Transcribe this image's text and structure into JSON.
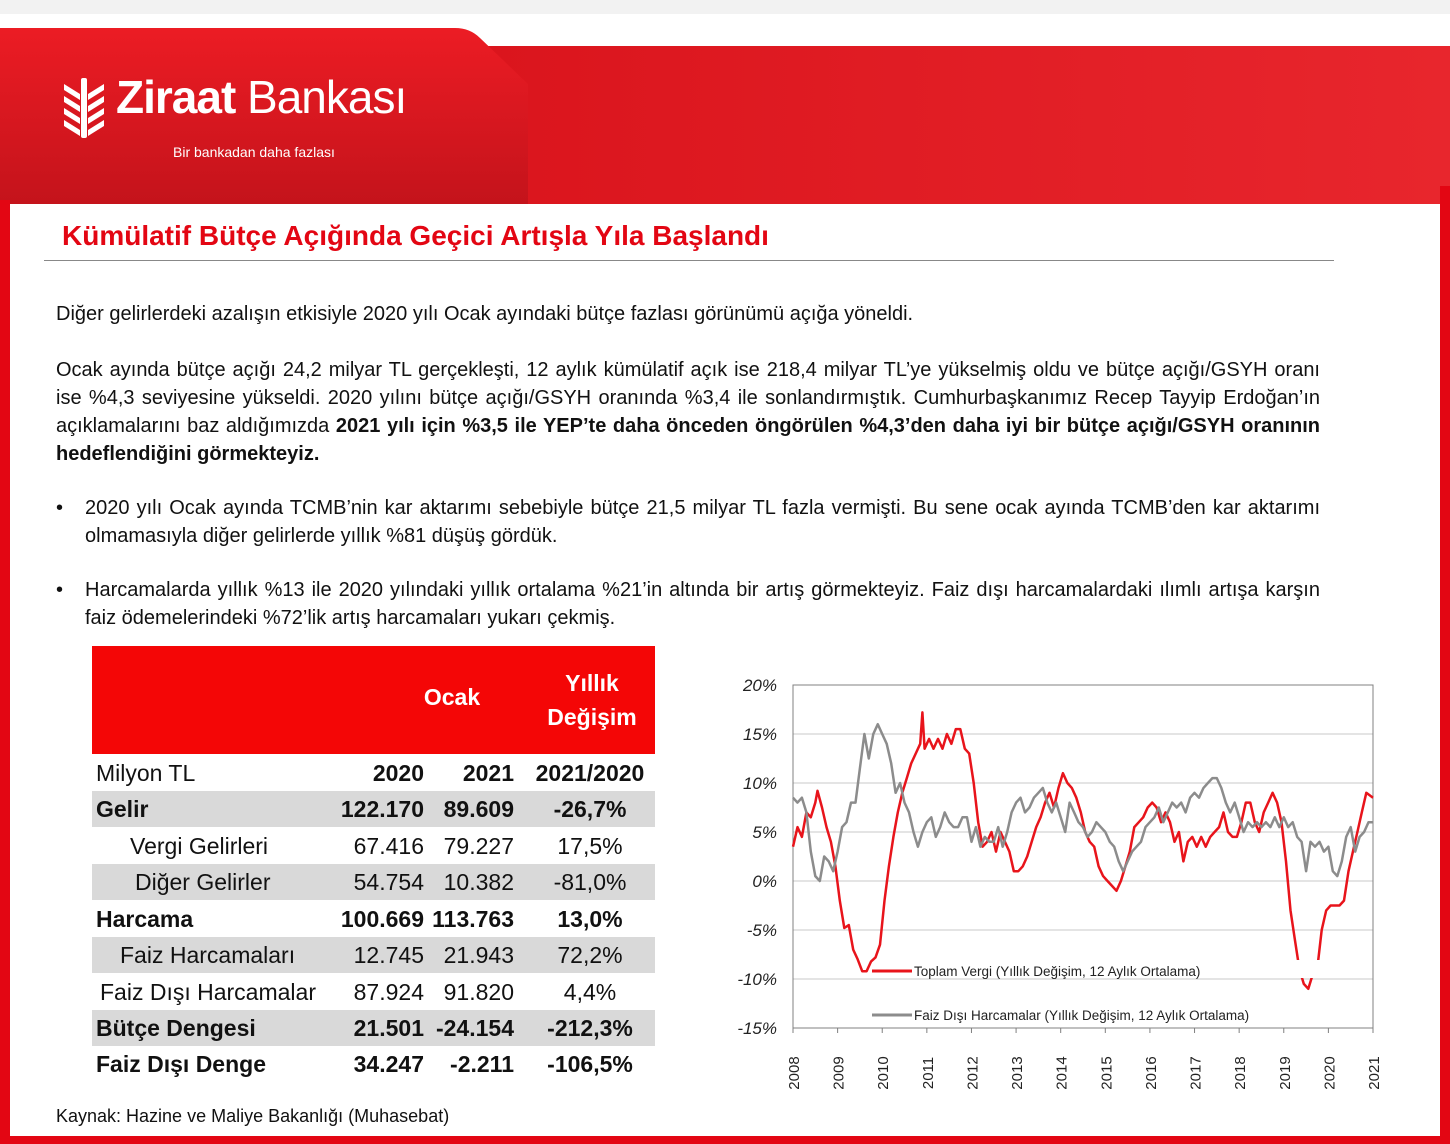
{
  "header": {
    "brand_bold": "Ziraat",
    "brand_thin": "Bankası",
    "slogan": "Bir bankadan daha fazlası",
    "brand_color": "#e30613"
  },
  "title": "Kümülatif Bütçe Açığında Geçici Artışla Yıla Başlandı",
  "paragraphs": {
    "p1": "Diğer gelirlerdeki azalışın etkisiyle 2020 yılı Ocak ayındaki bütçe fazlası görünümü açığa yöneldi.",
    "p2_normal": "Ocak ayında bütçe açığı 24,2 milyar TL gerçekleşti, 12 aylık kümülatif açık ise 218,4 milyar TL’ye yükselmiş oldu ve bütçe açığı/GSYH oranı ise %4,3 seviyesine yükseldi. 2020 yılını bütçe açığı/GSYH oranında %3,4 ile sonlandırmıştık. Cumhurbaşkanımız Recep Tayyip Erdoğan’ın açıklamalarını baz aldığımızda ",
    "p2_bold": "2021 yılı için %3,5 ile YEP’te daha önceden öngörülen %4,3’den daha iyi bir bütçe açığı/GSYH oranının hedeflendiğini görmekteyiz."
  },
  "bullets": {
    "b1": "2020 yılı Ocak ayında TCMB’nin kar aktarımı sebebiyle bütçe 21,5 milyar TL fazla vermişti. Bu sene ocak ayında TCMB’den kar aktarımı olmamasıyla diğer gelirlerde yıllık %81 düşüş gördük.",
    "b2": "Harcamalarda yıllık %13 ile 2020 yılındaki yıllık ortalama %21’in altında bir artış görmekteyiz. Faiz dışı harcamalardaki ılımlı artışa karşın faiz ödemelerindeki %72’lik artış harcamaları yukarı çekmiş."
  },
  "table": {
    "header_ocak": "Ocak",
    "header_yillik_1": "Yıllık",
    "header_yillik_2": "Değişim",
    "header_color": "#f40606",
    "rows": [
      {
        "label": "Milyon TL",
        "c1": "2020",
        "c2": "2021",
        "c3": "2021/2020"
      },
      {
        "label": "Gelir",
        "c1": "122.170",
        "c2": "89.609",
        "c3": "-26,7%"
      },
      {
        "label": "Vergi Gelirleri",
        "c1": "67.416",
        "c2": "79.227",
        "c3": "17,5%"
      },
      {
        "label": "Diğer Gelirler",
        "c1": "54.754",
        "c2": "10.382",
        "c3": "-81,0%"
      },
      {
        "label": "Harcama",
        "c1": "100.669",
        "c2": "113.763",
        "c3": "13,0%"
      },
      {
        "label": "Faiz Harcamaları",
        "c1": "12.745",
        "c2": "21.943",
        "c3": "72,2%"
      },
      {
        "label": "Faiz Dışı Harcamalar",
        "c1": "87.924",
        "c2": "91.820",
        "c3": "4,4%"
      },
      {
        "label": "Bütçe Dengesi",
        "c1": "21.501",
        "c2": "-24.154",
        "c3": "-212,3%"
      },
      {
        "label": "Faiz Dışı Denge",
        "c1": "34.247",
        "c2": "-2.211",
        "c3": "-106,5%"
      }
    ]
  },
  "source": "Kaynak: Hazine ve Maliye Bakanlığı (Muhasebat)",
  "chart_data": {
    "type": "line",
    "title": "",
    "xlabel": "",
    "ylabel": "",
    "x_ticks": [
      "2008",
      "2009",
      "2010",
      "2011",
      "2012",
      "2013",
      "2014",
      "2015",
      "2016",
      "2017",
      "2018",
      "2019",
      "2020",
      "2021"
    ],
    "xlim": [
      2008,
      2021
    ],
    "y_ticks": [
      "20%",
      "15%",
      "10%",
      "5%",
      "0%",
      "-5%",
      "-10%",
      "-15%"
    ],
    "y_tick_values": [
      20,
      15,
      10,
      5,
      0,
      -5,
      -10,
      -15
    ],
    "ylim": [
      -15,
      20
    ],
    "grid": true,
    "legend_placement": "inside-bottom",
    "series": [
      {
        "name": "Toplam Vergi (Yıllık Değişim, 12 Aylık Ortalama)",
        "color": "#e8141b",
        "points": [
          [
            2008.0,
            3.5
          ],
          [
            2008.1,
            5.5
          ],
          [
            2008.2,
            4.5
          ],
          [
            2008.3,
            7
          ],
          [
            2008.4,
            6.5
          ],
          [
            2008.5,
            8
          ],
          [
            2008.55,
            9.2
          ],
          [
            2008.65,
            7.5
          ],
          [
            2008.75,
            5.5
          ],
          [
            2008.85,
            4
          ],
          [
            2008.95,
            1.5
          ],
          [
            2009.05,
            -2
          ],
          [
            2009.15,
            -4.8
          ],
          [
            2009.25,
            -4.5
          ],
          [
            2009.35,
            -7
          ],
          [
            2009.45,
            -8
          ],
          [
            2009.55,
            -9.2
          ],
          [
            2009.65,
            -9.2
          ],
          [
            2009.75,
            -8.2
          ],
          [
            2009.85,
            -7.8
          ],
          [
            2009.95,
            -6.5
          ],
          [
            2010.05,
            -2
          ],
          [
            2010.15,
            1.5
          ],
          [
            2010.25,
            4.5
          ],
          [
            2010.35,
            7
          ],
          [
            2010.45,
            9
          ],
          [
            2010.55,
            10.5
          ],
          [
            2010.65,
            12
          ],
          [
            2010.75,
            13
          ],
          [
            2010.85,
            14
          ],
          [
            2010.9,
            17.2
          ],
          [
            2010.95,
            13.5
          ],
          [
            2011.05,
            14.5
          ],
          [
            2011.15,
            13.5
          ],
          [
            2011.25,
            14.5
          ],
          [
            2011.35,
            13.5
          ],
          [
            2011.45,
            15
          ],
          [
            2011.55,
            14
          ],
          [
            2011.65,
            15.5
          ],
          [
            2011.75,
            15.5
          ],
          [
            2011.85,
            13.5
          ],
          [
            2011.95,
            13
          ],
          [
            2012.05,
            10
          ],
          [
            2012.15,
            6
          ],
          [
            2012.25,
            3.5
          ],
          [
            2012.35,
            4
          ],
          [
            2012.45,
            5
          ],
          [
            2012.55,
            3
          ],
          [
            2012.65,
            5
          ],
          [
            2012.75,
            4
          ],
          [
            2012.85,
            3
          ],
          [
            2012.95,
            1
          ],
          [
            2013.05,
            1
          ],
          [
            2013.15,
            1.5
          ],
          [
            2013.25,
            2.5
          ],
          [
            2013.35,
            4
          ],
          [
            2013.45,
            5.5
          ],
          [
            2013.55,
            6.5
          ],
          [
            2013.65,
            8
          ],
          [
            2013.75,
            9
          ],
          [
            2013.85,
            7.5
          ],
          [
            2013.95,
            9.5
          ],
          [
            2014.05,
            11
          ],
          [
            2014.15,
            10
          ],
          [
            2014.25,
            9.5
          ],
          [
            2014.35,
            8.5
          ],
          [
            2014.45,
            7
          ],
          [
            2014.55,
            5
          ],
          [
            2014.65,
            4
          ],
          [
            2014.75,
            3.5
          ],
          [
            2014.85,
            1.5
          ],
          [
            2014.95,
            0.5
          ],
          [
            2015.05,
            0
          ],
          [
            2015.15,
            -0.5
          ],
          [
            2015.25,
            -1
          ],
          [
            2015.35,
            0
          ],
          [
            2015.45,
            1.5
          ],
          [
            2015.55,
            3
          ],
          [
            2015.65,
            5.5
          ],
          [
            2015.75,
            6
          ],
          [
            2015.85,
            6.5
          ],
          [
            2015.95,
            7.5
          ],
          [
            2016.05,
            8
          ],
          [
            2016.15,
            7.5
          ],
          [
            2016.25,
            6
          ],
          [
            2016.35,
            7
          ],
          [
            2016.45,
            6
          ],
          [
            2016.55,
            4
          ],
          [
            2016.65,
            5
          ],
          [
            2016.75,
            2
          ],
          [
            2016.85,
            4
          ],
          [
            2016.95,
            4.5
          ],
          [
            2017.05,
            3.5
          ],
          [
            2017.15,
            4.5
          ],
          [
            2017.25,
            3.5
          ],
          [
            2017.35,
            4.5
          ],
          [
            2017.45,
            5
          ],
          [
            2017.55,
            5.5
          ],
          [
            2017.65,
            7
          ],
          [
            2017.75,
            5
          ],
          [
            2017.85,
            4.5
          ],
          [
            2017.95,
            4.5
          ],
          [
            2018.05,
            6
          ],
          [
            2018.15,
            8
          ],
          [
            2018.25,
            8
          ],
          [
            2018.35,
            6
          ],
          [
            2018.45,
            5
          ],
          [
            2018.55,
            7
          ],
          [
            2018.65,
            8
          ],
          [
            2018.75,
            9
          ],
          [
            2018.85,
            8
          ],
          [
            2018.95,
            6
          ],
          [
            2019.05,
            2
          ],
          [
            2019.15,
            -3
          ],
          [
            2019.25,
            -6
          ],
          [
            2019.35,
            -9
          ],
          [
            2019.45,
            -10.5
          ],
          [
            2019.55,
            -11
          ],
          [
            2019.65,
            -9.5
          ],
          [
            2019.75,
            -9
          ],
          [
            2019.85,
            -5
          ],
          [
            2019.95,
            -3
          ],
          [
            2020.05,
            -2.5
          ],
          [
            2020.15,
            -2.5
          ],
          [
            2020.25,
            -2.5
          ],
          [
            2020.35,
            -2
          ],
          [
            2020.45,
            1
          ],
          [
            2020.55,
            3
          ],
          [
            2020.65,
            5
          ],
          [
            2020.75,
            7
          ],
          [
            2020.85,
            9
          ],
          [
            2021.0,
            8.5
          ]
        ]
      },
      {
        "name": "Faiz Dışı Harcamalar (Yıllık Değişim, 12 Aylık Ortalama)",
        "color": "#8c8c8c",
        "points": [
          [
            2008.0,
            8.5
          ],
          [
            2008.1,
            8
          ],
          [
            2008.2,
            8.5
          ],
          [
            2008.3,
            7
          ],
          [
            2008.4,
            3
          ],
          [
            2008.5,
            0.5
          ],
          [
            2008.6,
            0
          ],
          [
            2008.7,
            2.5
          ],
          [
            2008.8,
            2
          ],
          [
            2008.9,
            1
          ],
          [
            2009.0,
            3
          ],
          [
            2009.1,
            5.5
          ],
          [
            2009.2,
            6
          ],
          [
            2009.3,
            8
          ],
          [
            2009.4,
            8
          ],
          [
            2009.5,
            11.5
          ],
          [
            2009.6,
            15
          ],
          [
            2009.7,
            12.5
          ],
          [
            2009.8,
            15
          ],
          [
            2009.9,
            16
          ],
          [
            2010.0,
            15
          ],
          [
            2010.1,
            14
          ],
          [
            2010.2,
            12
          ],
          [
            2010.3,
            9
          ],
          [
            2010.4,
            10
          ],
          [
            2010.5,
            8
          ],
          [
            2010.6,
            7
          ],
          [
            2010.7,
            5
          ],
          [
            2010.8,
            3.5
          ],
          [
            2010.9,
            5
          ],
          [
            2011.0,
            6
          ],
          [
            2011.1,
            6.5
          ],
          [
            2011.2,
            4.5
          ],
          [
            2011.3,
            5.5
          ],
          [
            2011.4,
            7
          ],
          [
            2011.5,
            6
          ],
          [
            2011.6,
            5.5
          ],
          [
            2011.7,
            5.5
          ],
          [
            2011.8,
            6.5
          ],
          [
            2011.9,
            6.5
          ],
          [
            2012.0,
            4
          ],
          [
            2012.1,
            5.5
          ],
          [
            2012.2,
            3.5
          ],
          [
            2012.3,
            4.5
          ],
          [
            2012.4,
            4
          ],
          [
            2012.5,
            4
          ],
          [
            2012.6,
            5.5
          ],
          [
            2012.7,
            3.5
          ],
          [
            2012.8,
            5
          ],
          [
            2012.9,
            7
          ],
          [
            2013.0,
            8
          ],
          [
            2013.1,
            8.5
          ],
          [
            2013.2,
            7
          ],
          [
            2013.3,
            7.5
          ],
          [
            2013.4,
            8.5
          ],
          [
            2013.5,
            9
          ],
          [
            2013.6,
            9.5
          ],
          [
            2013.7,
            8
          ],
          [
            2013.8,
            7
          ],
          [
            2013.9,
            8
          ],
          [
            2014.0,
            6.5
          ],
          [
            2014.1,
            5
          ],
          [
            2014.2,
            8
          ],
          [
            2014.3,
            7
          ],
          [
            2014.4,
            6
          ],
          [
            2014.5,
            5.5
          ],
          [
            2014.6,
            4.5
          ],
          [
            2014.7,
            5
          ],
          [
            2014.8,
            6
          ],
          [
            2014.9,
            5.5
          ],
          [
            2015.0,
            5
          ],
          [
            2015.1,
            4
          ],
          [
            2015.2,
            3.5
          ],
          [
            2015.3,
            2
          ],
          [
            2015.4,
            1
          ],
          [
            2015.5,
            2
          ],
          [
            2015.6,
            3
          ],
          [
            2015.7,
            3.5
          ],
          [
            2015.8,
            4
          ],
          [
            2015.9,
            5.5
          ],
          [
            2016.0,
            6
          ],
          [
            2016.1,
            6.5
          ],
          [
            2016.2,
            7.5
          ],
          [
            2016.3,
            6
          ],
          [
            2016.4,
            7
          ],
          [
            2016.5,
            8
          ],
          [
            2016.6,
            7.5
          ],
          [
            2016.7,
            8
          ],
          [
            2016.8,
            7
          ],
          [
            2016.9,
            8.5
          ],
          [
            2017.0,
            9
          ],
          [
            2017.1,
            8.5
          ],
          [
            2017.2,
            9.5
          ],
          [
            2017.3,
            10
          ],
          [
            2017.4,
            10.5
          ],
          [
            2017.5,
            10.5
          ],
          [
            2017.6,
            9.5
          ],
          [
            2017.7,
            8
          ],
          [
            2017.8,
            7
          ],
          [
            2017.9,
            8
          ],
          [
            2018.0,
            6.5
          ],
          [
            2018.1,
            5
          ],
          [
            2018.2,
            6
          ],
          [
            2018.3,
            5.5
          ],
          [
            2018.4,
            6
          ],
          [
            2018.5,
            5.5
          ],
          [
            2018.6,
            6
          ],
          [
            2018.7,
            5.5
          ],
          [
            2018.8,
            6.5
          ],
          [
            2018.9,
            5.5
          ],
          [
            2019.0,
            6.5
          ],
          [
            2019.1,
            5.5
          ],
          [
            2019.2,
            6
          ],
          [
            2019.3,
            4.5
          ],
          [
            2019.4,
            4
          ],
          [
            2019.5,
            1
          ],
          [
            2019.6,
            4
          ],
          [
            2019.7,
            3.5
          ],
          [
            2019.8,
            4
          ],
          [
            2019.9,
            3
          ],
          [
            2020.0,
            3.5
          ],
          [
            2020.1,
            1
          ],
          [
            2020.2,
            0.5
          ],
          [
            2020.3,
            2
          ],
          [
            2020.4,
            4.5
          ],
          [
            2020.5,
            5.5
          ],
          [
            2020.6,
            3
          ],
          [
            2020.7,
            4.5
          ],
          [
            2020.8,
            5
          ],
          [
            2020.9,
            6
          ],
          [
            2021.0,
            6
          ]
        ]
      }
    ]
  }
}
